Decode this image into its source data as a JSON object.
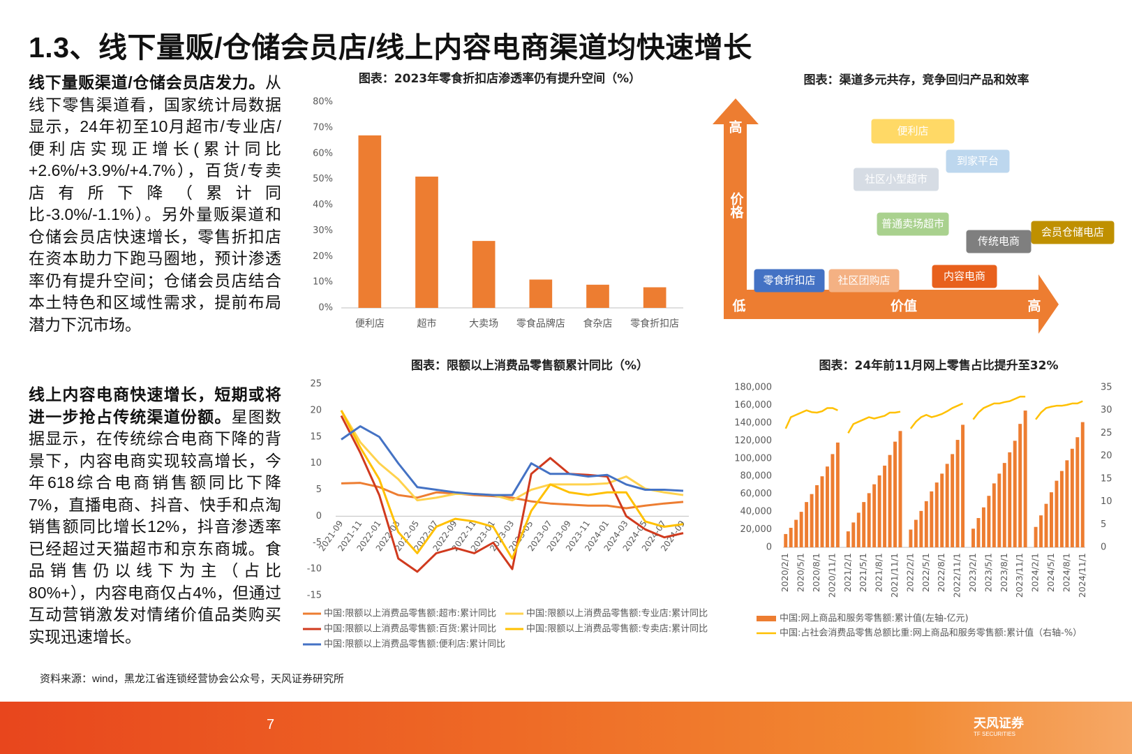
{
  "title": "1.3、线下量贩/仓储会员店/线上内容电商渠道均快速增长",
  "sections": [
    {
      "lead": "线下量贩渠道/仓储会员店发力。",
      "body": "从线下零售渠道看，国家统计局数据显示，24年初至10月超市/专业店/便利店实现正增长(累计同比+2.6%/+3.9%/+4.7%），百货/专卖店有所下降（累计同比-3.0%/-1.1%）。另外量贩渠道和仓储会员店快速增长，零售折扣店在资本助力下跑马圈地，预计渗透率仍有提升空间；仓储会员店结合本土特色和区域性需求，提前布局潜力下沉市场。"
    },
    {
      "lead": "线上内容电商快速增长，短期或将进一步抢占传统渠道份额。",
      "body": "星图数据显示，在传统综合电商下降的背景下，内容电商实现较高增长，今年618综合电商销售额同比下降7%，直播电商、抖音、快手和点淘销售额同比增长12%，抖音渗透率已经超过天猫超市和京东商城。食品销售仍以线下为主（占比80%+），内容电商仅占4%，但通过互动营销激发对情绪价值品类购买实现迅速增长。"
    }
  ],
  "chart_data": [
    {
      "type": "bar",
      "title": "图表：2023年零食折扣店渗透率仍有提升空间（%）",
      "categories": [
        "便利店",
        "超市",
        "大卖场",
        "零食品牌店",
        "食杂店",
        "零食折扣店"
      ],
      "values": [
        67,
        51,
        26,
        11,
        9,
        8
      ],
      "color": "#ED7D31",
      "ylim": [
        0,
        80
      ],
      "yticks": [
        {
          "value": 0,
          "label": "0%"
        },
        {
          "value": 10,
          "label": "10%"
        },
        {
          "value": 20,
          "label": "20%"
        },
        {
          "value": 30,
          "label": "30%"
        },
        {
          "value": 40,
          "label": "40%"
        },
        {
          "value": 50,
          "label": "50%"
        },
        {
          "value": 60,
          "label": "60%"
        },
        {
          "value": 70,
          "label": "70%"
        },
        {
          "value": 80,
          "label": "80%"
        }
      ]
    },
    {
      "type": "line",
      "title": "图表：限额以上消费品零售额累计同比（%）",
      "categories": [
        "2021-09",
        "2021-11",
        "2022-01",
        "2022-03",
        "2022-05",
        "2022-07",
        "2022-09",
        "2022-11",
        "2023-01",
        "2023-03",
        "2023-05",
        "2023-07",
        "2023-09",
        "2023-11",
        "2024-01",
        "2024-03",
        "2024-05",
        "2024-07",
        "2024-09"
      ],
      "series": [
        {
          "name": "中国:限额以上消费品零售额:超市:累计同比",
          "color": "#ED7D31",
          "values": [
            6.2,
            6.3,
            5.5,
            4.0,
            3.5,
            4.5,
            4.3,
            4.0,
            3.8,
            3.5,
            2.8,
            2.4,
            2.2,
            2.0,
            2.0,
            1.5,
            2.0,
            2.4,
            2.7
          ]
        },
        {
          "name": "中国:限额以上消费品零售额:专业店:累计同比",
          "color": "#FFD24D",
          "values": [
            20,
            14,
            10,
            7,
            3,
            3.5,
            4.2,
            4.2,
            4,
            3,
            5,
            6,
            6,
            6,
            6.2,
            7.5,
            5.2,
            4.5,
            4.0
          ]
        },
        {
          "name": "中国:限额以上消费品零售额:百货:累计同比",
          "color": "#D03A1E",
          "values": [
            19,
            12,
            4,
            -8,
            -10.5,
            -7,
            -6,
            -7,
            -5,
            -10,
            8,
            11,
            8,
            7.8,
            7.5,
            0,
            -2.5,
            -4,
            -3.2
          ]
        },
        {
          "name": "中国:限额以上消费品零售额:专卖店:累计同比",
          "color": "#FFC000",
          "values": [
            20,
            13,
            7,
            -3,
            -7,
            -2,
            -0.5,
            -1,
            -2,
            -8,
            1,
            6,
            4.5,
            4,
            4.5,
            4.5,
            -1,
            -2,
            -1.5
          ]
        },
        {
          "name": "中国:限额以上消费品零售额:便利店:累计同比",
          "color": "#4472C4",
          "values": [
            14.5,
            17,
            15,
            10,
            5.5,
            5,
            4.5,
            4.2,
            4,
            4,
            10,
            8,
            8,
            7.5,
            7.8,
            6,
            5,
            5,
            4.8
          ]
        }
      ],
      "ylim": [
        -15,
        25
      ],
      "yticks": [
        -15,
        -10,
        -5,
        0,
        5,
        10,
        15,
        20,
        25
      ]
    },
    {
      "type": "combo",
      "title": "图表：24年前11月网上零售占比提升至32%",
      "categories": [
        "2020/2/1",
        null,
        null,
        "2020/5/1",
        null,
        null,
        "2020/8/1",
        null,
        null,
        "2020/11/1",
        null,
        null,
        "2021/2/1",
        null,
        null,
        "2021/5/1",
        null,
        null,
        "2021/8/1",
        null,
        null,
        "2021/11/1",
        null,
        null,
        "2022/2/1",
        null,
        null,
        "2022/5/1",
        null,
        null,
        "2022/8/1",
        null,
        null,
        "2022/11/1",
        null,
        null,
        "2023/2/1",
        null,
        null,
        "2023/5/1",
        null,
        null,
        "2023/8/1",
        null,
        null,
        "2023/11/1",
        null,
        null,
        "2024/2/1",
        null,
        null,
        "2024/5/1",
        null,
        null,
        "2024/8/1",
        null,
        null,
        "2024/11/1"
      ],
      "series": [
        {
          "name": "中国:网上商品和服务零售额:累计值(左轴-亿元)",
          "type": "bar",
          "color": "#ED7D31",
          "values": [
            15000,
            22000,
            31000,
            40000,
            51000,
            60000,
            70000,
            80000,
            91000,
            105000,
            118000,
            null,
            18000,
            28000,
            39000,
            51000,
            61000,
            71000,
            81000,
            92000,
            104000,
            119000,
            131000,
            null,
            20000,
            31000,
            41000,
            52000,
            63000,
            73000,
            83000,
            94000,
            105000,
            121000,
            138000,
            null,
            21000,
            33000,
            45000,
            58000,
            72000,
            83000,
            95000,
            107000,
            120000,
            139000,
            154000,
            null,
            23000,
            36000,
            49000,
            62000,
            75000,
            86000,
            98000,
            111000,
            124000,
            141000
          ]
        },
        {
          "name": "中国:占社会消费品零售总额比重:网上商品和服务零售额:累计值（右轴-%）",
          "type": "line",
          "axis": "y2",
          "color": "#FFC000",
          "values": [
            26,
            28.5,
            29,
            29.5,
            30,
            29.6,
            29.5,
            29.8,
            30.5,
            30.5,
            30,
            null,
            25,
            27,
            27.5,
            28,
            28.5,
            28.2,
            28.5,
            28.8,
            29.5,
            29.5,
            29.7,
            null,
            26,
            27.5,
            28.5,
            29,
            28.5,
            28.8,
            29.2,
            29.8,
            30.5,
            31,
            31.5,
            null,
            28,
            29.5,
            30.5,
            31,
            31.5,
            31.5,
            31.8,
            32,
            32.5,
            33,
            33,
            null,
            28,
            29.5,
            30.5,
            30.8,
            31,
            31,
            31.2,
            31.5,
            31.5,
            32
          ]
        }
      ],
      "ylim": [
        0,
        180000
      ],
      "yticks": [
        0,
        {
          "value": 20000,
          "label": "20,000"
        },
        {
          "value": 40000,
          "label": "40,000"
        },
        {
          "value": 60000,
          "label": "60,000"
        },
        {
          "value": 80000,
          "label": "80,000"
        },
        {
          "value": 100000,
          "label": "100,000"
        },
        {
          "value": 120000,
          "label": "120,000"
        },
        {
          "value": 140000,
          "label": "140,000"
        },
        {
          "value": 160000,
          "label": "160,000"
        },
        {
          "value": 180000,
          "label": "180,000"
        }
      ],
      "y2lim": [
        0,
        35
      ],
      "y2ticks": [
        0,
        5,
        10,
        15,
        20,
        25,
        30,
        35
      ]
    }
  ],
  "diagram": {
    "title": "图表：渠道多元共存，竞争回归产品和效率",
    "y_high": "高",
    "y_label": "价格",
    "x_low": "低",
    "x_label": "价值",
    "x_high": "高",
    "nodes": [
      {
        "label": "便利店",
        "color": "#FFD966"
      },
      {
        "label": "到家平台",
        "color": "#BDD7EE"
      },
      {
        "label": "社区小型超市",
        "color": "#D6DCE4"
      },
      {
        "label": "普通卖场超市",
        "color": "#A9D18E"
      },
      {
        "label": "传统电商",
        "color": "#7F7F7F"
      },
      {
        "label": "会员仓储电店",
        "color": "#BF9000"
      },
      {
        "label": "零食折扣店",
        "color": "#4472C4"
      },
      {
        "label": "社区团购店",
        "color": "#F4B183"
      },
      {
        "label": "内容电商",
        "color": "#E8601C"
      }
    ]
  },
  "source": "资料来源：wind，黑龙江省连锁经营协会公众号，天风证券研究所",
  "footer": {
    "page": 7,
    "logo": "天风证券",
    "logo_en": "TF SECURITIES"
  }
}
